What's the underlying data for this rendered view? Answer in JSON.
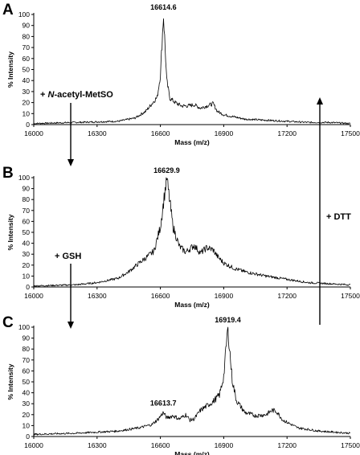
{
  "chart_data": [
    {
      "type": "line",
      "panel_label": "A",
      "xlabel": "Mass (m/z)",
      "ylabel": "% Intensity",
      "xlim": [
        16000,
        17500
      ],
      "ylim": [
        0,
        100
      ],
      "xticks": [
        "16000",
        "16300",
        "16600",
        "16900",
        "17200",
        "17500"
      ],
      "yticks": [
        "0",
        "10",
        "20",
        "30",
        "40",
        "50",
        "60",
        "70",
        "80",
        "90",
        "100"
      ],
      "annotations": [
        {
          "text": "16614.6",
          "x": 16614.6,
          "y": 100
        }
      ],
      "series": [
        {
          "x": [
            16000,
            16200,
            16400,
            16480,
            16530,
            16560,
            16585,
            16600,
            16614.6,
            16630,
            16645,
            16670,
            16700,
            16730,
            16760,
            16790,
            16820,
            16850,
            16870,
            16900,
            16950,
            17000,
            17100,
            17200,
            17300,
            17400,
            17500
          ],
          "y": [
            1,
            2,
            3,
            6,
            12,
            19,
            25,
            45,
            100,
            40,
            24,
            20,
            17,
            17,
            18,
            15,
            17,
            19,
            12,
            9,
            7,
            5,
            4,
            3,
            2,
            2,
            1
          ]
        }
      ]
    },
    {
      "type": "line",
      "panel_label": "B",
      "xlabel": "Mass (m/z)",
      "ylabel": "% Intensity",
      "xlim": [
        16000,
        17500
      ],
      "ylim": [
        0,
        100
      ],
      "xticks": [
        "16000",
        "16300",
        "16600",
        "16900",
        "17200",
        "17500"
      ],
      "yticks": [
        "0",
        "10",
        "20",
        "30",
        "40",
        "50",
        "60",
        "70",
        "80",
        "90",
        "100"
      ],
      "annotations": [
        {
          "text": "16629.9",
          "x": 16629.9,
          "y": 100
        }
      ],
      "series": [
        {
          "x": [
            16000,
            16200,
            16300,
            16400,
            16450,
            16500,
            16540,
            16570,
            16600,
            16629.9,
            16660,
            16690,
            16720,
            16760,
            16790,
            16820,
            16850,
            16870,
            16900,
            16950,
            17000,
            17100,
            17200,
            17300,
            17400,
            17500
          ],
          "y": [
            1,
            2,
            4,
            8,
            14,
            22,
            28,
            33,
            55,
            100,
            55,
            37,
            32,
            38,
            31,
            36,
            34,
            28,
            22,
            17,
            14,
            10,
            7,
            4,
            3,
            2
          ]
        }
      ]
    },
    {
      "type": "line",
      "panel_label": "C",
      "xlabel": "Mass (m/z)",
      "ylabel": "% Intensity",
      "xlim": [
        16000,
        17500
      ],
      "ylim": [
        0,
        100
      ],
      "xticks": [
        "16000",
        "16300",
        "16600",
        "16900",
        "17200",
        "17500"
      ],
      "yticks": [
        "0",
        "10",
        "20",
        "30",
        "40",
        "50",
        "60",
        "70",
        "80",
        "90",
        "100"
      ],
      "annotations": [
        {
          "text": "16613.7",
          "x": 16613.7,
          "y": 24
        },
        {
          "text": "16919.4",
          "x": 16919.4,
          "y": 100
        }
      ],
      "series": [
        {
          "x": [
            16000,
            16200,
            16400,
            16500,
            16560,
            16590,
            16613.7,
            16630,
            16660,
            16690,
            16720,
            16740,
            16760,
            16790,
            16820,
            16850,
            16880,
            16900,
            16919.4,
            16940,
            16960,
            17000,
            17050,
            17100,
            17130,
            17150,
            17180,
            17250,
            17350,
            17500
          ],
          "y": [
            2,
            3,
            5,
            8,
            11,
            16,
            22,
            17,
            19,
            16,
            20,
            15,
            16,
            24,
            28,
            32,
            38,
            55,
            100,
            52,
            33,
            22,
            19,
            20,
            24,
            23,
            15,
            8,
            5,
            3
          ]
        }
      ]
    }
  ],
  "arrows": {
    "a_to_b": "+ N-acetyl-MetSO",
    "a_to_b_prefix": "+ ",
    "a_to_b_italic": "N",
    "a_to_b_suffix": "-acetyl-MetSO",
    "b_to_c": "+ GSH",
    "c_to_a": "+ DTT"
  }
}
